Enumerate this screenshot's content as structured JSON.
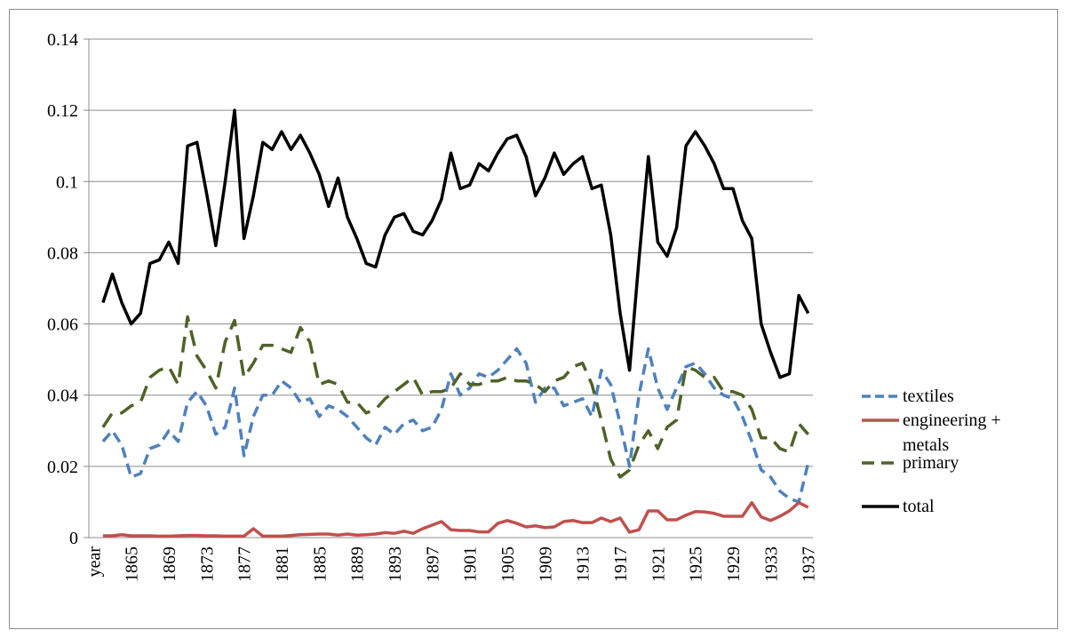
{
  "chart_data": {
    "type": "line",
    "categories": [
      "year",
      null,
      null,
      null,
      "1865",
      null,
      null,
      null,
      "1869",
      null,
      null,
      null,
      "1873",
      null,
      null,
      null,
      "1877",
      null,
      null,
      null,
      "1881",
      null,
      null,
      null,
      "1885",
      null,
      null,
      null,
      "1889",
      null,
      null,
      null,
      "1893",
      null,
      null,
      null,
      "1897",
      null,
      null,
      null,
      "1901",
      null,
      null,
      null,
      "1905",
      null,
      null,
      null,
      "1909",
      null,
      null,
      null,
      "1913",
      null,
      null,
      null,
      "1917",
      null,
      null,
      null,
      "1921",
      null,
      null,
      null,
      "1925",
      null,
      null,
      null,
      "1929",
      null,
      null,
      null,
      "1933",
      null,
      null,
      null,
      "1937"
    ],
    "series": [
      {
        "name": "textiles",
        "color": "#4f81bd",
        "dash": "12,7",
        "values": [
          null,
          0.027,
          0.03,
          0.026,
          0.017,
          0.018,
          0.025,
          0.026,
          0.03,
          0.027,
          0.038,
          0.041,
          0.037,
          0.029,
          0.031,
          0.042,
          0.023,
          0.034,
          0.04,
          0.04,
          0.044,
          0.042,
          0.038,
          0.039,
          0.034,
          0.037,
          0.036,
          0.034,
          0.031,
          0.028,
          0.026,
          0.031,
          0.029,
          0.032,
          0.033,
          0.03,
          0.031,
          0.036,
          0.046,
          0.04,
          0.042,
          0.046,
          0.045,
          0.047,
          0.05,
          0.053,
          0.049,
          0.038,
          0.042,
          0.042,
          0.037,
          0.038,
          0.039,
          0.034,
          0.047,
          0.043,
          0.032,
          0.02,
          0.04,
          0.053,
          0.042,
          0.036,
          0.042,
          0.048,
          0.049,
          0.046,
          0.042,
          0.04,
          0.039,
          0.034,
          0.027,
          0.019,
          0.017,
          0.013,
          0.011,
          0.01,
          0.021
        ]
      },
      {
        "name": "engineering + metals",
        "color": "#c0504d",
        "dash": null,
        "values": [
          null,
          0.0005,
          0.0005,
          0.0008,
          0.0005,
          0.0005,
          0.0005,
          0.0004,
          0.0004,
          0.0005,
          0.0006,
          0.0006,
          0.0005,
          0.0005,
          0.0004,
          0.0004,
          0.0004,
          0.0025,
          0.0004,
          0.0004,
          0.0004,
          0.0006,
          0.0008,
          0.0009,
          0.001,
          0.001,
          0.0007,
          0.001,
          0.0007,
          0.0008,
          0.001,
          0.0014,
          0.0012,
          0.0018,
          0.0012,
          0.0025,
          0.0035,
          0.0045,
          0.0022,
          0.002,
          0.002,
          0.0016,
          0.0016,
          0.004,
          0.0048,
          0.004,
          0.003,
          0.0033,
          0.0028,
          0.003,
          0.0045,
          0.0048,
          0.0042,
          0.0042,
          0.0055,
          0.0045,
          0.0055,
          0.0015,
          0.0022,
          0.0075,
          0.0075,
          0.005,
          0.005,
          0.0063,
          0.0073,
          0.0072,
          0.0068,
          0.006,
          0.006,
          0.006,
          0.0098,
          0.0058,
          0.0048,
          0.006,
          0.0075,
          0.0098,
          0.0085
        ]
      },
      {
        "name": "primary",
        "color": "#4f6228",
        "dash": "18,10",
        "values": [
          null,
          0.031,
          0.035,
          0.035,
          0.037,
          0.038,
          0.045,
          0.047,
          0.048,
          0.043,
          0.062,
          0.051,
          0.047,
          0.042,
          0.055,
          0.061,
          0.045,
          0.049,
          0.054,
          0.054,
          0.053,
          0.052,
          0.059,
          0.055,
          0.043,
          0.044,
          0.043,
          0.038,
          0.038,
          0.035,
          0.036,
          0.039,
          0.041,
          0.043,
          0.045,
          0.04,
          0.041,
          0.041,
          0.042,
          0.046,
          0.043,
          0.043,
          0.044,
          0.044,
          0.045,
          0.044,
          0.044,
          0.043,
          0.041,
          0.044,
          0.045,
          0.048,
          0.049,
          0.043,
          0.033,
          0.022,
          0.017,
          0.019,
          0.026,
          0.03,
          0.025,
          0.031,
          0.033,
          0.048,
          0.047,
          0.045,
          0.045,
          0.041,
          0.041,
          0.04,
          0.036,
          0.028,
          0.028,
          0.025,
          0.024,
          0.032,
          0.029
        ]
      },
      {
        "name": "total",
        "color": "#000000",
        "dash": null,
        "values": [
          null,
          0.066,
          0.074,
          0.066,
          0.06,
          0.063,
          0.077,
          0.078,
          0.083,
          0.077,
          0.11,
          0.111,
          0.097,
          0.082,
          0.1,
          0.12,
          0.084,
          0.096,
          0.111,
          0.109,
          0.114,
          0.109,
          0.113,
          0.108,
          0.102,
          0.093,
          0.101,
          0.09,
          0.084,
          0.077,
          0.076,
          0.085,
          0.09,
          0.091,
          0.086,
          0.085,
          0.089,
          0.095,
          0.108,
          0.098,
          0.099,
          0.105,
          0.103,
          0.108,
          0.112,
          0.113,
          0.107,
          0.096,
          0.101,
          0.108,
          0.102,
          0.105,
          0.107,
          0.098,
          0.099,
          0.085,
          0.063,
          0.047,
          0.078,
          0.107,
          0.083,
          0.079,
          0.087,
          0.11,
          0.114,
          0.11,
          0.105,
          0.098,
          0.098,
          0.089,
          0.084,
          0.06,
          0.052,
          0.045,
          0.046,
          0.068,
          0.063
        ]
      }
    ],
    "ylim": [
      0,
      0.14
    ],
    "yticks": [
      0,
      0.02,
      0.04,
      0.06,
      0.08,
      0.1,
      0.12,
      0.14
    ],
    "grid": true,
    "legend": "right"
  }
}
